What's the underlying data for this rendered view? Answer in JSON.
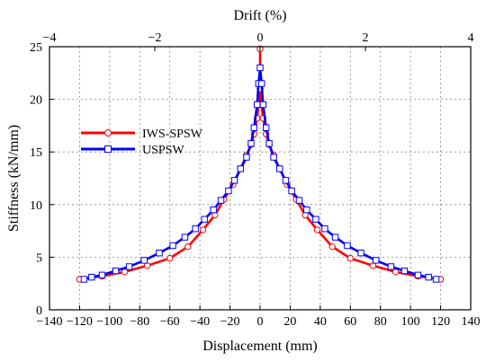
{
  "chart_data": {
    "type": "line",
    "xlabel": "Displacement (mm)",
    "ylabel": "Stiffness (kN/mm)",
    "x2label": "Drift (%)",
    "xlim": [
      -140,
      140
    ],
    "ylim": [
      0,
      25
    ],
    "x2lim": [
      -4,
      4
    ],
    "xticks": [
      -140,
      -120,
      -100,
      -80,
      -60,
      -40,
      -20,
      0,
      20,
      40,
      60,
      80,
      100,
      120,
      140
    ],
    "yticks": [
      0,
      5,
      10,
      15,
      20,
      25
    ],
    "x2ticks": [
      -4,
      -2,
      0,
      2,
      4
    ],
    "grid": true,
    "legend_position": "left-middle",
    "series": [
      {
        "name": "IWS-SPSW",
        "color": "#ff0000",
        "marker": "circle",
        "points": [
          [
            -120,
            2.9
          ],
          [
            -105,
            3.2
          ],
          [
            -90,
            3.6
          ],
          [
            -75,
            4.2
          ],
          [
            -60,
            4.9
          ],
          [
            -48,
            6.0
          ],
          [
            -38,
            7.6
          ],
          [
            -30,
            9.0
          ],
          [
            -24,
            10.5
          ],
          [
            -18,
            11.9
          ],
          [
            -13,
            13.4
          ],
          [
            -9,
            14.7
          ],
          [
            -6,
            15.7
          ],
          [
            -4,
            16.7
          ],
          [
            -2,
            18.2
          ],
          [
            -1,
            19.5
          ],
          [
            0,
            21.0
          ],
          [
            0,
            24.8
          ],
          [
            0,
            21.0
          ],
          [
            1,
            19.5
          ],
          [
            2,
            18.2
          ],
          [
            4,
            16.7
          ],
          [
            6,
            15.7
          ],
          [
            9,
            14.7
          ],
          [
            13,
            13.4
          ],
          [
            18,
            11.9
          ],
          [
            24,
            10.5
          ],
          [
            30,
            9.0
          ],
          [
            38,
            7.6
          ],
          [
            48,
            6.0
          ],
          [
            60,
            4.9
          ],
          [
            75,
            4.2
          ],
          [
            90,
            3.6
          ],
          [
            105,
            3.2
          ],
          [
            120,
            2.9
          ]
        ]
      },
      {
        "name": "USPSW",
        "color": "#0000ff",
        "marker": "square",
        "points": [
          [
            -117,
            2.9
          ],
          [
            -112,
            3.1
          ],
          [
            -105,
            3.3
          ],
          [
            -96,
            3.7
          ],
          [
            -87,
            4.1
          ],
          [
            -77,
            4.7
          ],
          [
            -67,
            5.4
          ],
          [
            -58,
            6.1
          ],
          [
            -50,
            6.9
          ],
          [
            -43,
            7.7
          ],
          [
            -37,
            8.6
          ],
          [
            -31,
            9.5
          ],
          [
            -26,
            10.4
          ],
          [
            -21,
            11.3
          ],
          [
            -17,
            12.3
          ],
          [
            -13,
            13.4
          ],
          [
            -9,
            14.5
          ],
          [
            -6,
            15.8
          ],
          [
            -4,
            17.3
          ],
          [
            -2,
            19.5
          ],
          [
            -1,
            21.5
          ],
          [
            0,
            23.0
          ],
          [
            1,
            21.5
          ],
          [
            2,
            19.5
          ],
          [
            4,
            17.3
          ],
          [
            6,
            15.8
          ],
          [
            9,
            14.5
          ],
          [
            13,
            13.4
          ],
          [
            17,
            12.3
          ],
          [
            21,
            11.3
          ],
          [
            26,
            10.4
          ],
          [
            31,
            9.5
          ],
          [
            37,
            8.6
          ],
          [
            43,
            7.7
          ],
          [
            50,
            6.9
          ],
          [
            58,
            6.1
          ],
          [
            67,
            5.4
          ],
          [
            77,
            4.7
          ],
          [
            87,
            4.1
          ],
          [
            96,
            3.7
          ],
          [
            105,
            3.3
          ],
          [
            112,
            3.1
          ],
          [
            117,
            2.9
          ]
        ]
      }
    ]
  }
}
